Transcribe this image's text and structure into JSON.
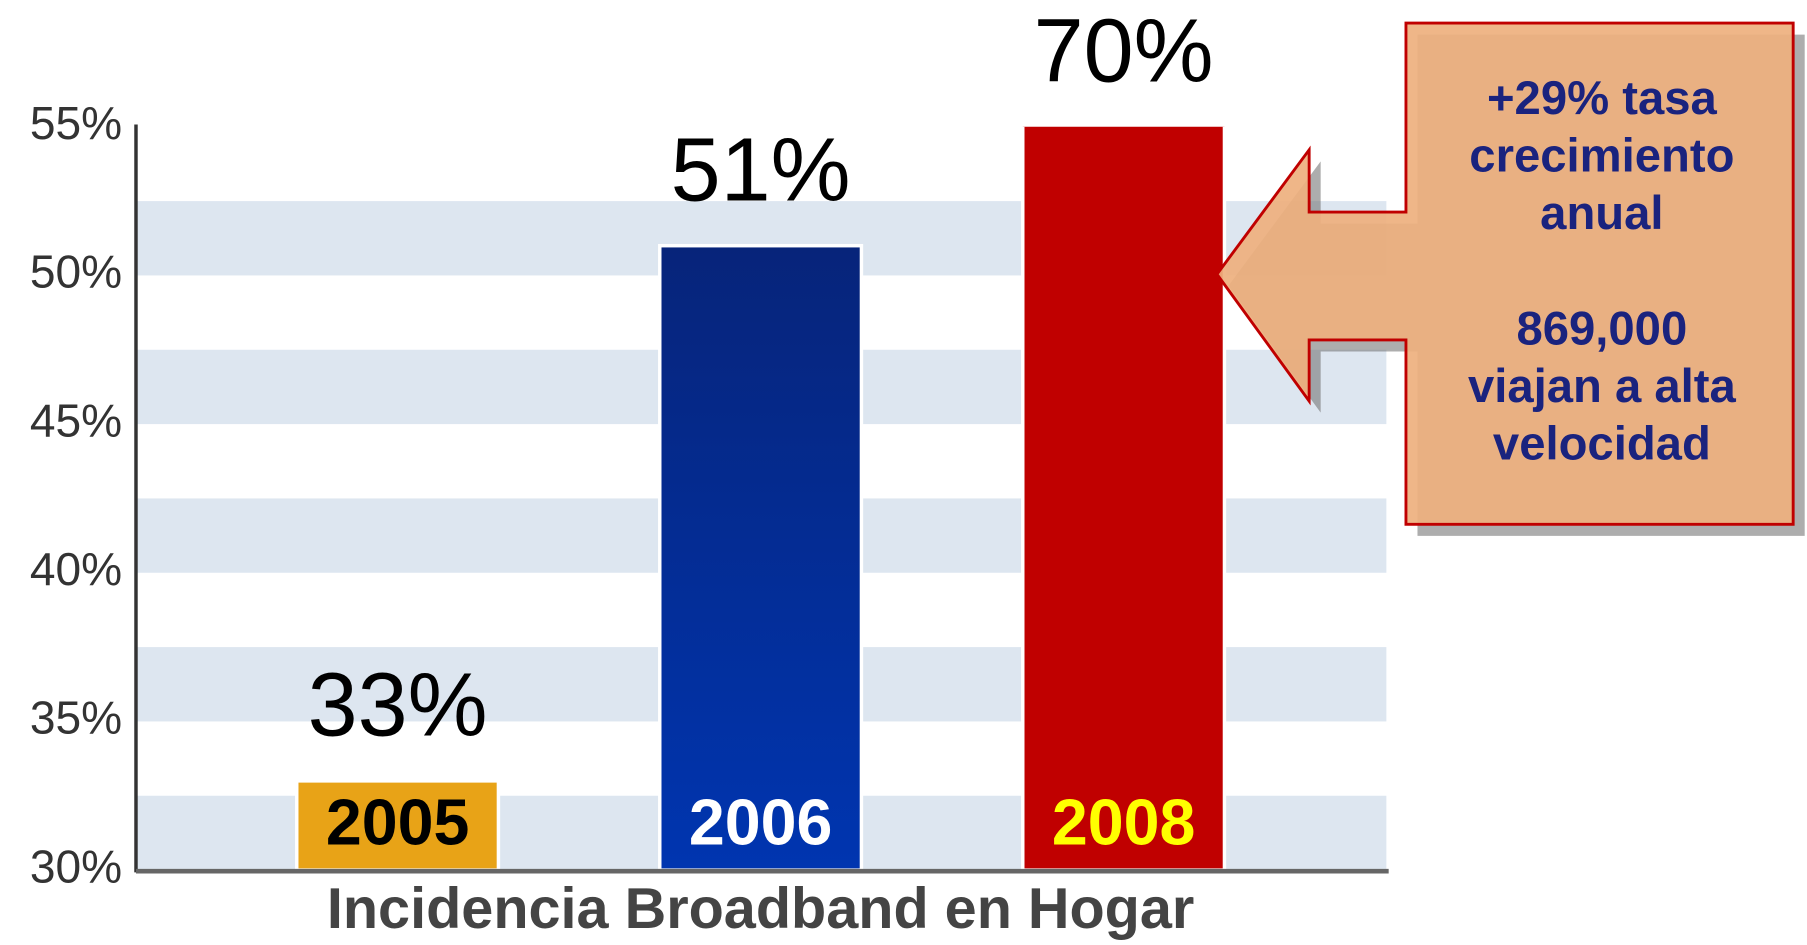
{
  "chart_data": {
    "type": "bar",
    "x_label": "Incidencia Broadband en Hogar",
    "categories": [
      "2005",
      "2006",
      "2008"
    ],
    "values": [
      33,
      51,
      70
    ],
    "value_labels": [
      "33%",
      "51%",
      "70%"
    ],
    "colors": [
      "#e8a317",
      "#0a2d8c",
      "#c00000"
    ],
    "category_label_colors": [
      "#000000",
      "#ffffff",
      "#ffff00"
    ],
    "ylim": [
      30,
      55
    ],
    "yticks": [
      {
        "value": 30,
        "label": "30%"
      },
      {
        "value": 35,
        "label": "35%"
      },
      {
        "value": 40,
        "label": "40%"
      },
      {
        "value": 45,
        "label": "45%"
      },
      {
        "value": 50,
        "label": "50%"
      },
      {
        "value": 55,
        "label": "55%"
      }
    ],
    "grid": true,
    "annotation": [
      [
        "+29% tasa",
        "crecimiento",
        "anual"
      ],
      [
        "869,000",
        "viajan a alta",
        "velocidad"
      ]
    ]
  }
}
